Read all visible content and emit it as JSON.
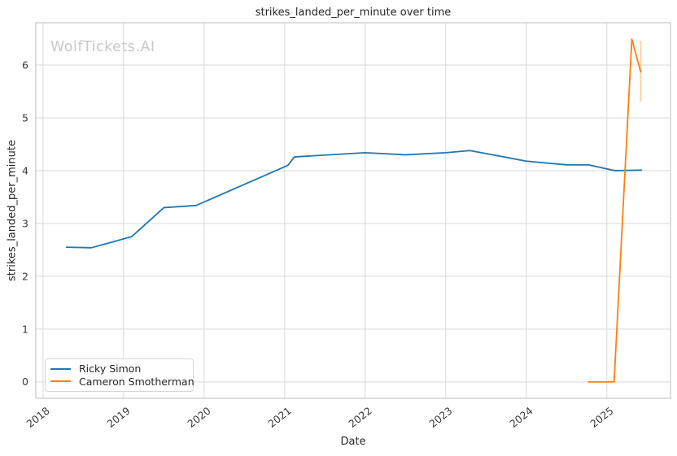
{
  "chart_data": {
    "type": "line",
    "title": "strikes_landed_per_minute over time",
    "xlabel": "Date",
    "ylabel": "strikes_landed_per_minute",
    "watermark": "WolfTickets.AI",
    "xlim": [
      2017.91,
      2025.79
    ],
    "ylim": [
      -0.31,
      6.8
    ],
    "xticks": [
      2018,
      2019,
      2020,
      2021,
      2022,
      2023,
      2024,
      2025
    ],
    "yticks": [
      0,
      1,
      2,
      3,
      4,
      5,
      6
    ],
    "grid": true,
    "legend_position": "lower-left",
    "series": [
      {
        "name": "Ricky Simon",
        "color": "#1f77b4",
        "points": [
          [
            2018.29,
            2.55
          ],
          [
            2018.6,
            2.54
          ],
          [
            2019.1,
            2.75
          ],
          [
            2019.5,
            3.3
          ],
          [
            2019.9,
            3.34
          ],
          [
            2021.04,
            4.1
          ],
          [
            2021.12,
            4.26
          ],
          [
            2022.0,
            4.34
          ],
          [
            2022.5,
            4.3
          ],
          [
            2023.0,
            4.34
          ],
          [
            2023.3,
            4.38
          ],
          [
            2024.0,
            4.18
          ],
          [
            2024.5,
            4.11
          ],
          [
            2024.77,
            4.11
          ],
          [
            2025.1,
            4.0
          ],
          [
            2025.43,
            4.01
          ]
        ]
      },
      {
        "name": "Cameron Smotherman",
        "color": "#ff7f0e",
        "points": [
          [
            2024.77,
            0.0
          ],
          [
            2025.09,
            0.0
          ],
          [
            2025.31,
            6.49
          ],
          [
            2025.42,
            5.87
          ]
        ],
        "error_bars": [
          {
            "x": 2025.42,
            "low": 5.31,
            "high": 6.46
          }
        ]
      }
    ]
  }
}
